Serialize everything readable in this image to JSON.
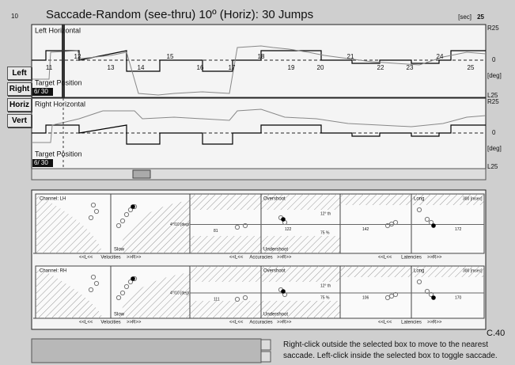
{
  "header": {
    "start_label": "10",
    "title": "Saccade-Random (see-thru) 10º (Horiz): 30 Jumps",
    "unit": "[sec]",
    "end_label": "25"
  },
  "side_buttons": [
    "Left",
    "Right",
    "Horiz",
    "Vert"
  ],
  "traces": [
    {
      "title": "Left Horizontal",
      "target_label": "Target Position",
      "counter": "6/ 30",
      "top_scale": "R25",
      "zero": "0",
      "unit": "[deg]",
      "bottom_scale": "L25",
      "jump_numbers": [
        "11",
        "12",
        "13",
        "14",
        "15",
        "16",
        "17",
        "18",
        "19",
        "20",
        "21",
        "22",
        "23",
        "24",
        "25"
      ]
    },
    {
      "title": "Right Horizontal",
      "target_label": "Target Position",
      "counter": "6/ 30",
      "top_scale": "R25",
      "zero": "0",
      "unit": "[deg]",
      "bottom_scale": "L25",
      "jump_numbers": []
    }
  ],
  "analysis": [
    {
      "channel": "Channel: LH",
      "slow": "Slow",
      "velocity_threshold": "4°/10 [deg/s]",
      "velocity_label": "Velocities",
      "overshoot": "Overshoot",
      "undershoot": "Undershoot",
      "over_threshold": "12° th",
      "under_threshold": "75 %",
      "accuracy_left": "81",
      "accuracy_right": "122",
      "accuracy_label": "Accuracies",
      "long": "Long",
      "latency_threshold": "300 [msec]",
      "latency_left": "142",
      "latency_right": "172",
      "latency_label": "Latencies",
      "left_marker": "<<L<<",
      "right_marker": ">>R>>"
    },
    {
      "channel": "Channel: RH",
      "slow": "Slow",
      "velocity_threshold": "4°/10 [deg/s]",
      "velocity_label": "Velocities",
      "overshoot": "Overshoot",
      "undershoot": "Undershoot",
      "over_threshold": "12° th",
      "under_threshold": "75 %",
      "accuracy_left": "111",
      "accuracy_right": "",
      "accuracy_label": "Accuracies",
      "long": "Long",
      "latency_threshold": "300 [msec]",
      "latency_left": "106",
      "latency_right": "170",
      "latency_label": "Latencies",
      "left_marker": "<<L<<",
      "right_marker": ">>R>>"
    }
  ],
  "footer": {
    "code": "C.40",
    "hint": "Right-click outside the selected box to move to the nearest saccade. Left-click inside the selected box to toggle saccade."
  }
}
